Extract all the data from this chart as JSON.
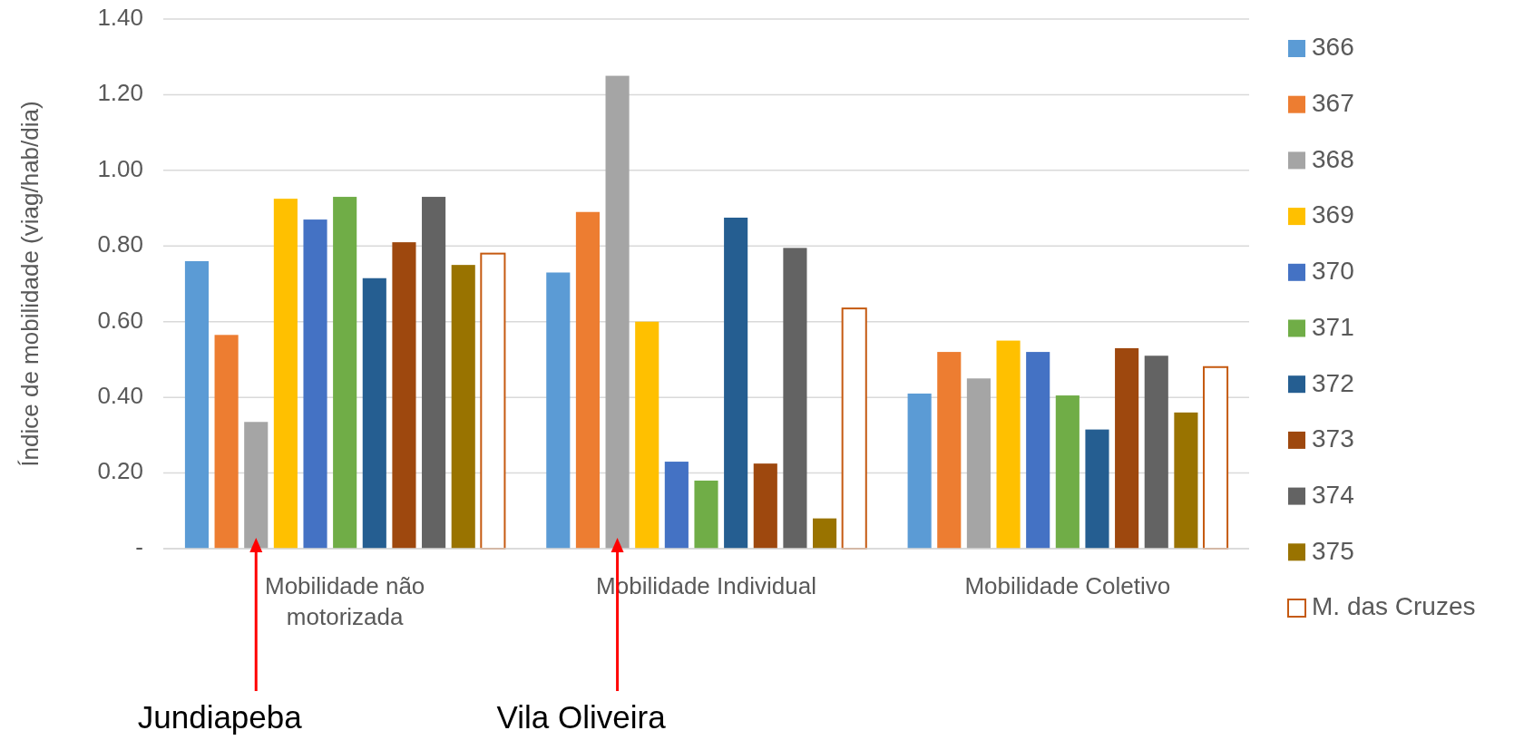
{
  "chart_data": {
    "type": "bar",
    "categories": [
      "Mobilidade não motorizada",
      "Mobilidade Individual",
      "Mobilidade Coletivo"
    ],
    "ylabel": "Índice de mobilidade (viag/hab/dia)",
    "ylim": [
      0,
      1.4
    ],
    "yticks": [
      {
        "value": 0,
        "label": "-"
      },
      {
        "value": 0.2,
        "label": "0.20"
      },
      {
        "value": 0.4,
        "label": "0.40"
      },
      {
        "value": 0.6,
        "label": "0.60"
      },
      {
        "value": 0.8,
        "label": "0.80"
      },
      {
        "value": 1.0,
        "label": "1.00"
      },
      {
        "value": 1.2,
        "label": "1.20"
      },
      {
        "value": 1.4,
        "label": "1.40"
      }
    ],
    "grid": "y",
    "legend": "right",
    "series": [
      {
        "name": "366",
        "color": "#5b9bd5",
        "values": [
          0.76,
          0.73,
          0.41
        ]
      },
      {
        "name": "367",
        "color": "#ed7d31",
        "values": [
          0.565,
          0.89,
          0.52
        ]
      },
      {
        "name": "368",
        "color": "#a5a5a5",
        "values": [
          0.335,
          1.25,
          0.45
        ]
      },
      {
        "name": "369",
        "color": "#ffc000",
        "values": [
          0.925,
          0.6,
          0.55
        ]
      },
      {
        "name": "370",
        "color": "#4472c4",
        "values": [
          0.87,
          0.23,
          0.52
        ]
      },
      {
        "name": "371",
        "color": "#70ad47",
        "values": [
          0.93,
          0.18,
          0.405
        ]
      },
      {
        "name": "372",
        "color": "#255e91",
        "values": [
          0.715,
          0.875,
          0.315
        ]
      },
      {
        "name": "373",
        "color": "#9e480e",
        "values": [
          0.81,
          0.225,
          0.53
        ]
      },
      {
        "name": "374",
        "color": "#636363",
        "values": [
          0.93,
          0.795,
          0.51
        ]
      },
      {
        "name": "375",
        "color": "#997300",
        "values": [
          0.75,
          0.08,
          0.36
        ]
      },
      {
        "name": "M. das Cruzes",
        "color": "#ffffff",
        "values": [
          0.78,
          0.635,
          0.48
        ]
      }
    ],
    "annotations": [
      "Jundiapeba",
      "Vila Oliveira"
    ]
  }
}
